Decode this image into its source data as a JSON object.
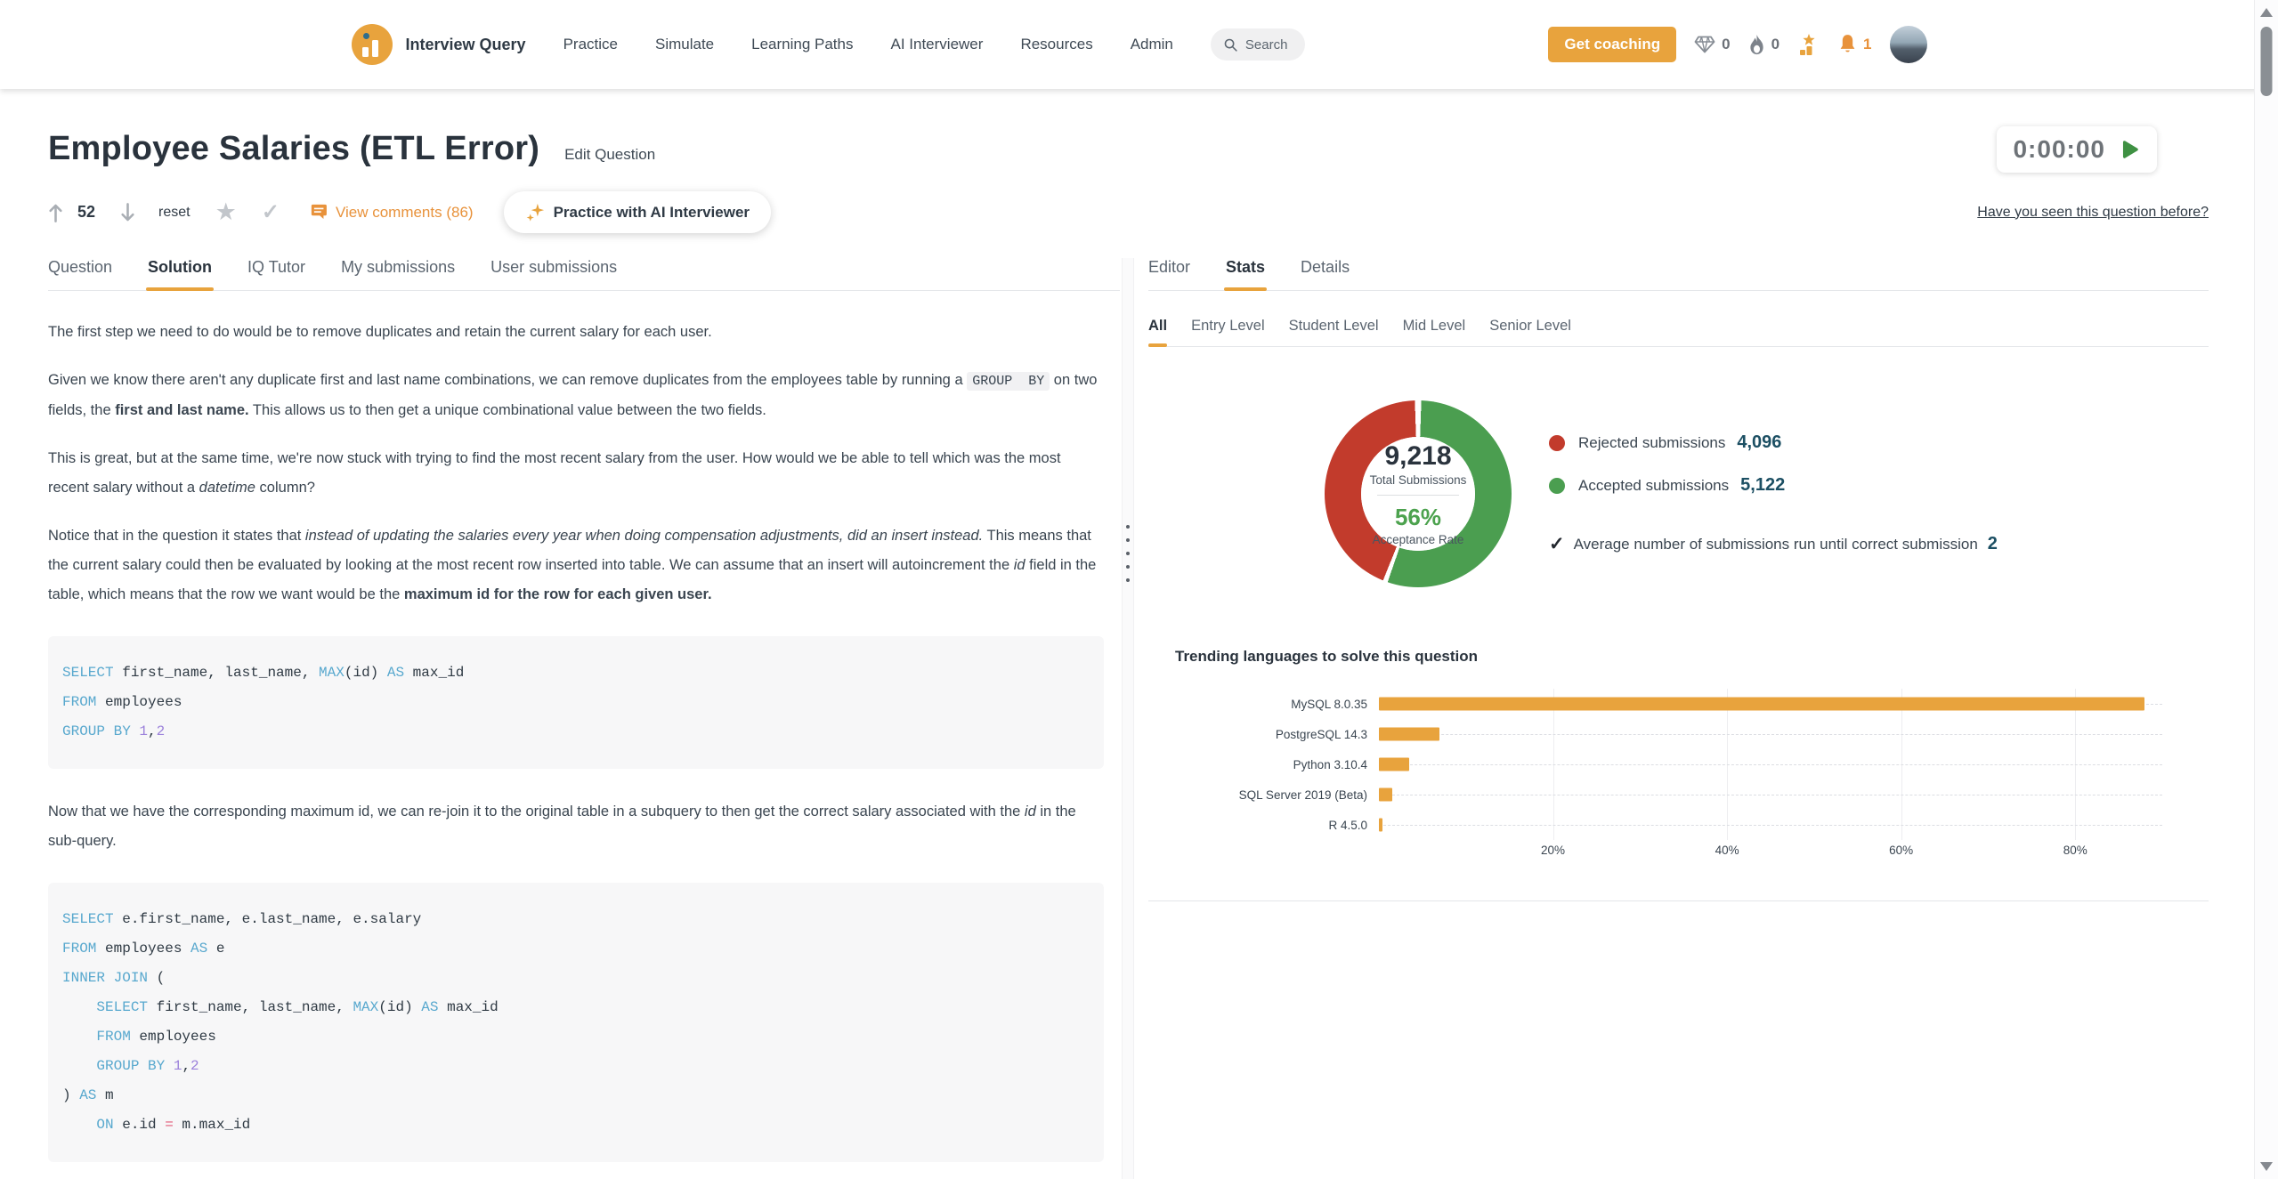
{
  "colors": {
    "accent": "#E8A33D",
    "accent_deep": "#E8923B",
    "rejected_red": "#C23B2C",
    "accepted_green": "#4B9E50",
    "value_navy": "#1C4F63",
    "rate_green": "#4CA24E"
  },
  "navbar": {
    "brand": "Interview Query",
    "links": [
      "Practice",
      "Simulate",
      "Learning Paths",
      "AI Interviewer",
      "Resources",
      "Admin"
    ],
    "search_label": "Search",
    "coaching_button": "Get coaching",
    "diamond_count": "0",
    "flame_count": "0",
    "bell_count": "1"
  },
  "header": {
    "title": "Employee Salaries (ETL Error)",
    "edit_link": "Edit Question",
    "timer": "0:00:00",
    "upvotes": "52",
    "reset_label": "reset",
    "comments_label": "View comments (86)",
    "ai_button": "Practice with AI Interviewer",
    "seen_link": "Have you seen this question before?"
  },
  "left_tabs": [
    {
      "label": "Question",
      "active": false
    },
    {
      "label": "Solution",
      "active": true
    },
    {
      "label": "IQ Tutor",
      "active": false
    },
    {
      "label": "My submissions",
      "active": false
    },
    {
      "label": "User submissions",
      "active": false
    }
  ],
  "right_tabs": [
    {
      "label": "Editor",
      "active": false
    },
    {
      "label": "Stats",
      "active": true
    },
    {
      "label": "Details",
      "active": false
    }
  ],
  "stats": {
    "filters": [
      {
        "label": "All",
        "active": true
      },
      {
        "label": "Entry Level",
        "active": false
      },
      {
        "label": "Student Level",
        "active": false
      },
      {
        "label": "Mid Level",
        "active": false
      },
      {
        "label": "Senior Level",
        "active": false
      }
    ],
    "avg_label": "Average number of submissions run until correct submission",
    "avg_value": "2"
  },
  "solution": {
    "flow": [
      {
        "type": "p",
        "segments": [
          {
            "t": "The first step we need to do would be to remove duplicates and retain the current salary for each user."
          }
        ]
      },
      {
        "type": "p",
        "segments": [
          {
            "t": "Given we know there aren't any duplicate first and last name combinations, we can remove duplicates from the employees table by running a "
          },
          {
            "t": "GROUP  BY",
            "s": "code"
          },
          {
            "t": " on two fields, the "
          },
          {
            "t": "first and last name.",
            "s": "b"
          },
          {
            "t": " This allows us to then get a unique combinational value between the two fields."
          }
        ]
      },
      {
        "type": "p",
        "segments": [
          {
            "t": "This is great, but at the same time, we're now stuck with trying to find the most recent salary from the user. How would we be able to tell which was the most recent salary without a "
          },
          {
            "t": "datetime",
            "s": "i"
          },
          {
            "t": " column?"
          }
        ]
      },
      {
        "type": "p",
        "segments": [
          {
            "t": "Notice that in the question it states that "
          },
          {
            "t": "instead of updating the salaries every year when doing compensation adjustments, did an insert instead.",
            "s": "i"
          },
          {
            "t": " This means that the current salary could then be evaluated by looking at the most recent row inserted into table. We can assume that an insert will autoincrement the "
          },
          {
            "t": "id",
            "s": "i"
          },
          {
            "t": " field in the table, which means that the row we want would be the "
          },
          {
            "t": "maximum id for the row for each given user.",
            "s": "b"
          }
        ]
      },
      {
        "type": "code",
        "lines": [
          [
            {
              "t": "SELECT",
              "c": "kw"
            },
            {
              "t": " first_name, last_name, "
            },
            {
              "t": "MAX",
              "c": "kw"
            },
            {
              "t": "(id) "
            },
            {
              "t": "AS",
              "c": "kw"
            },
            {
              "t": " max_id"
            }
          ],
          [
            {
              "t": "FROM",
              "c": "kw"
            },
            {
              "t": " employees"
            }
          ],
          [
            {
              "t": "GROUP BY",
              "c": "kw"
            },
            {
              "t": " "
            },
            {
              "t": "1",
              "c": "num"
            },
            {
              "t": ","
            },
            {
              "t": "2",
              "c": "num"
            }
          ]
        ]
      },
      {
        "type": "p",
        "segments": [
          {
            "t": "Now that we have the corresponding maximum id, we can re-join it to the original table in a subquery to then get the correct salary associated with the "
          },
          {
            "t": "id",
            "s": "i"
          },
          {
            "t": " in the sub-query."
          }
        ]
      },
      {
        "type": "code",
        "lines": [
          [
            {
              "t": "SELECT",
              "c": "kw"
            },
            {
              "t": " e.first_name, e.last_name, e.salary"
            }
          ],
          [
            {
              "t": "FROM",
              "c": "kw"
            },
            {
              "t": " employees "
            },
            {
              "t": "AS",
              "c": "kw"
            },
            {
              "t": " e"
            }
          ],
          [
            {
              "t": "INNER JOIN",
              "c": "kw"
            },
            {
              "t": " ("
            }
          ],
          [
            {
              "t": "    "
            },
            {
              "t": "SELECT",
              "c": "kw"
            },
            {
              "t": " first_name, last_name, "
            },
            {
              "t": "MAX",
              "c": "kw"
            },
            {
              "t": "(id) "
            },
            {
              "t": "AS",
              "c": "kw"
            },
            {
              "t": " max_id"
            }
          ],
          [
            {
              "t": "    "
            },
            {
              "t": "FROM",
              "c": "kw"
            },
            {
              "t": " employees"
            }
          ],
          [
            {
              "t": "    "
            },
            {
              "t": "GROUP BY",
              "c": "kw"
            },
            {
              "t": " "
            },
            {
              "t": "1",
              "c": "num"
            },
            {
              "t": ","
            },
            {
              "t": "2",
              "c": "num"
            }
          ],
          [
            {
              "t": ") "
            },
            {
              "t": "AS",
              "c": "kw"
            },
            {
              "t": " m"
            }
          ],
          [
            {
              "t": "    "
            },
            {
              "t": "ON",
              "c": "kw"
            },
            {
              "t": " e.id "
            },
            {
              "t": "=",
              "c": "op"
            },
            {
              "t": " m.max_id"
            }
          ]
        ]
      }
    ]
  },
  "chart_data": [
    {
      "type": "pie",
      "subtype": "donut",
      "slices": [
        {
          "label": "Rejected submissions",
          "value": 4096,
          "color": "#C23B2C"
        },
        {
          "label": "Accepted submissions",
          "value": 5122,
          "color": "#4B9E50"
        }
      ],
      "center": {
        "total": "9,218",
        "total_label": "Total Submissions",
        "rate": "56%",
        "rate_label": "Acceptance Rate"
      },
      "legend_position": "right"
    },
    {
      "type": "bar",
      "orientation": "horizontal",
      "title": "Trending languages to solve this question",
      "categories": [
        "MySQL 8.0.35",
        "PostgreSQL 14.3",
        "Python 3.10.4",
        "SQL Server 2019 (Beta)",
        "R 4.5.0"
      ],
      "values": [
        88,
        7,
        3.5,
        1.5,
        0.4
      ],
      "unit": "%",
      "xlim": [
        0,
        90
      ],
      "xticks": [
        20,
        40,
        60,
        80
      ],
      "bar_color": "#E8A33D",
      "grid": true,
      "legend_position": "none"
    }
  ]
}
